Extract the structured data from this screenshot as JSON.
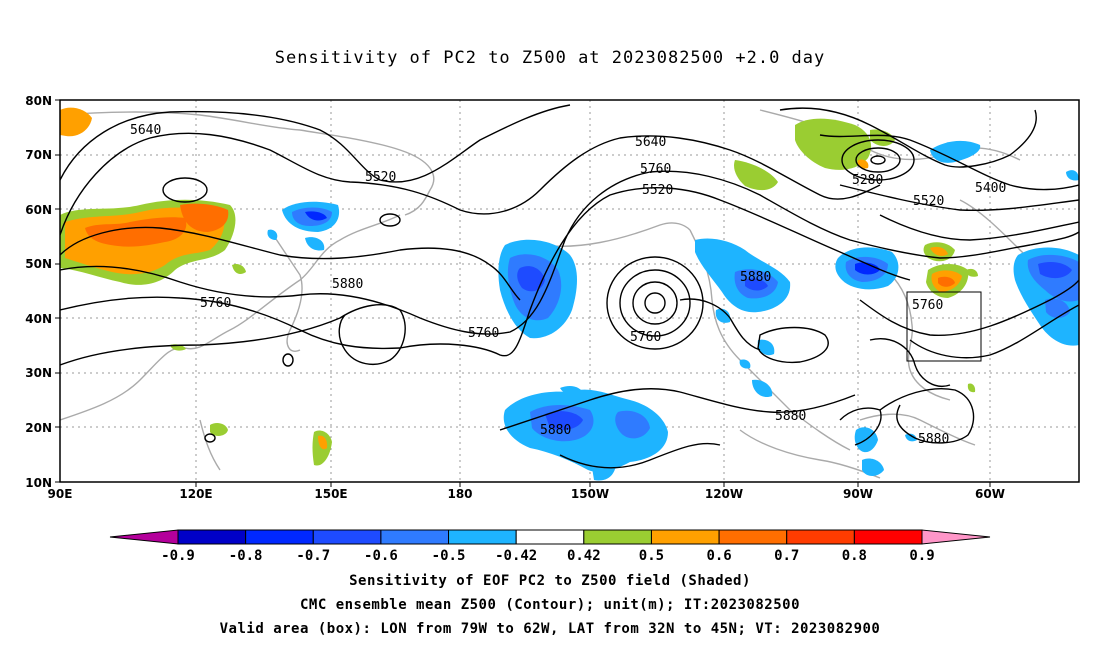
{
  "title": "Sensitivity of PC2 to Z500 at 2023082500 +2.0 day",
  "map": {
    "lat_ticks": [
      "80N",
      "70N",
      "60N",
      "50N",
      "40N",
      "30N",
      "20N",
      "10N"
    ],
    "lon_ticks": [
      "90E",
      "120E",
      "150E",
      "180",
      "150W",
      "120W",
      "90W",
      "60W"
    ],
    "contour_labels": [
      "5640",
      "5520",
      "5640",
      "5760",
      "5520",
      "5280",
      "5400",
      "5520",
      "5760",
      "5880",
      "5760",
      "5760",
      "5880",
      "5760",
      "5880",
      "5880",
      "5880"
    ],
    "valid_box": {
      "lon_from": "79W",
      "lon_to": "62W",
      "lat_from": "32N",
      "lat_to": "45N"
    }
  },
  "colorbar": {
    "labels": [
      "-0.9",
      "-0.8",
      "-0.7",
      "-0.6",
      "-0.5",
      "-0.42",
      "0.42",
      "0.5",
      "0.6",
      "0.7",
      "0.8",
      "0.9"
    ],
    "colors": [
      "#b4009b",
      "#0000c8",
      "#0028ff",
      "#1e4bff",
      "#2f7bff",
      "#1eb4ff",
      "#ffffff",
      "#9acd32",
      "#ffa000",
      "#ff6e00",
      "#ff3c00",
      "#ff0000",
      "#ff96c8"
    ]
  },
  "captions": {
    "line1": "Sensitivity of EOF PC2 to Z500 field (Shaded)",
    "line2": "CMC ensemble mean Z500 (Contour); unit(m); IT:2023082500",
    "line3": "Valid area (box): LON from 79W to 62W, LAT from 32N to 45N; VT: 2023082900"
  }
}
